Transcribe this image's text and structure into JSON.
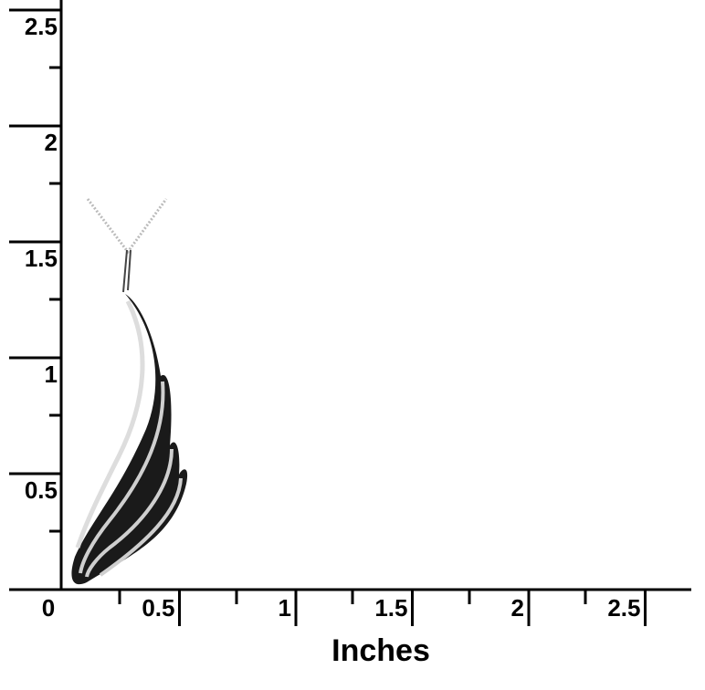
{
  "ruler": {
    "x_label": "Inches",
    "x_ticks": [
      0,
      0.5,
      1,
      1.5,
      2,
      2.5
    ],
    "y_ticks": [
      0.5,
      1,
      1.5,
      2,
      2.5
    ]
  }
}
